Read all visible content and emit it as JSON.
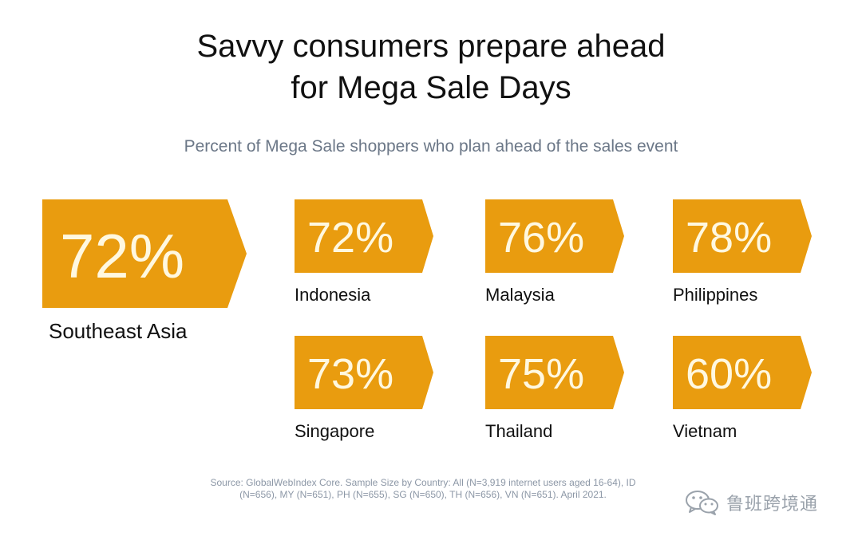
{
  "title_lines": [
    "Savvy consumers prepare ahead",
    "for Mega Sale Days"
  ],
  "colors": {
    "badge": "#E99C0F",
    "badge_text": "#FFF8E0",
    "subtitle": "#6B7787",
    "source": "#8C97A6"
  },
  "chart_data": {
    "type": "table",
    "title": "Savvy consumers prepare ahead for Mega Sale Days",
    "subtitle": "Percent of Mega Sale shoppers who plan ahead of the sales event",
    "unit": "%",
    "regions": [
      {
        "name": "Southeast Asia",
        "value": 72,
        "label": "72%"
      },
      {
        "name": "Indonesia",
        "value": 72,
        "label": "72%"
      },
      {
        "name": "Malaysia",
        "value": 76,
        "label": "76%"
      },
      {
        "name": "Philippines",
        "value": 78,
        "label": "78%"
      },
      {
        "name": "Singapore",
        "value": 73,
        "label": "73%"
      },
      {
        "name": "Thailand",
        "value": 75,
        "label": "75%"
      },
      {
        "name": "Vietnam",
        "value": 60,
        "label": "60%"
      }
    ]
  },
  "source_lines": [
    "Source: GlobalWebIndex Core. Sample Size by Country: All (N=3,919 internet users aged 16-64), ID",
    "(N=656), MY (N=651), PH (N=655), SG (N=650), TH (N=656), VN (N=651). April 2021."
  ],
  "watermark": {
    "icon": "wechat-icon",
    "text": "鲁班跨境通"
  }
}
